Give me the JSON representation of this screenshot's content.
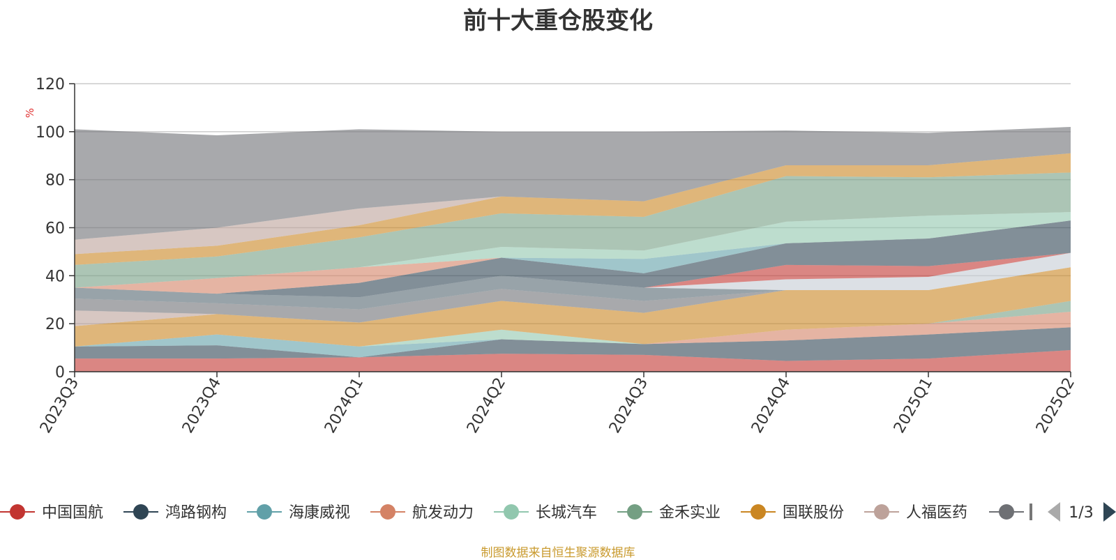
{
  "chart_data": {
    "type": "area",
    "title": "前十大重仓股变化",
    "ylabel": "%",
    "ylim": [
      0,
      120
    ],
    "yticks": [
      0,
      20,
      40,
      60,
      80,
      100,
      120
    ],
    "grid": true,
    "x": [
      "2023Q3",
      "2023Q4",
      "2024Q1",
      "2024Q2",
      "2024Q3",
      "2024Q4",
      "2025Q1",
      "2025Q2"
    ],
    "stacked": true,
    "legend_position": "bottom",
    "series": [
      {
        "name": "中国国航",
        "color": "#c23531",
        "values": [
          5.5,
          5.5,
          6.0,
          7.5,
          7.0,
          4.5,
          5.5,
          9.0
        ]
      },
      {
        "name": "鸿路钢构",
        "color": "#2f4554",
        "values": [
          5.0,
          5.5,
          0,
          6.0,
          4.5,
          8.5,
          10.0,
          9.5
        ]
      },
      {
        "name": "海康威视",
        "color": "#61a0a8",
        "values": [
          0,
          4.5,
          4.5,
          0,
          0,
          0,
          0,
          0
        ]
      },
      {
        "name": "航发动力",
        "color": "#d48265",
        "values": [
          0,
          0,
          0,
          0,
          0,
          4.5,
          4.5,
          6.5
        ]
      },
      {
        "name": "长城汽车",
        "color": "#91c7ae",
        "values": [
          0,
          0,
          0,
          4.0,
          0,
          0,
          0,
          0
        ]
      },
      {
        "name": "金禾实业",
        "color": "#749f83",
        "values": [
          0,
          0,
          0,
          0,
          0,
          0,
          0,
          4.5
        ]
      },
      {
        "name": "国联股份",
        "color": "#ca8622",
        "values": [
          8.5,
          8.5,
          10.0,
          12.0,
          13.0,
          16.5,
          14.0,
          14.0
        ]
      },
      {
        "name": "人福医药",
        "color": "#bda29a",
        "values": [
          6.5,
          0,
          0,
          0,
          0,
          0,
          0,
          0
        ]
      }
    ],
    "remaining_series_collapsed": true,
    "remaining_layers": [
      {
        "color": "#6e7074",
        "values": [
          5.0,
          4.5,
          5.5,
          5.0,
          5.0,
          0,
          0,
          0
        ]
      },
      {
        "color": "#546570",
        "values": [
          4.5,
          4.0,
          5.0,
          5.5,
          5.5,
          0,
          0,
          0
        ]
      },
      {
        "color": "#c23531",
        "values": [
          0,
          0,
          0,
          0,
          0,
          0,
          0,
          0
        ]
      },
      {
        "color": "#c4ccd3",
        "values": [
          0,
          0,
          0,
          0,
          0,
          4.5,
          5.5,
          6.0
        ]
      },
      {
        "color": "#c23531",
        "values": [
          0,
          0,
          0,
          0,
          0,
          6.0,
          4.5,
          0
        ]
      },
      {
        "color": "#2f4554",
        "values": [
          0,
          0,
          6.0,
          7.5,
          6.0,
          9.0,
          11.5,
          13.5
        ]
      },
      {
        "color": "#d48265",
        "values": [
          0,
          6.5,
          6.5,
          0,
          0,
          0,
          0,
          0
        ]
      },
      {
        "color": "#61a0a8",
        "values": [
          0,
          0,
          0,
          0,
          6.0,
          0,
          0,
          0
        ]
      },
      {
        "color": "#91c7ae",
        "values": [
          0,
          0,
          0,
          4.5,
          3.5,
          9.0,
          9.5,
          3.5
        ]
      },
      {
        "color": "#749f83",
        "values": [
          9.5,
          9.0,
          12.5,
          14.0,
          14.0,
          19.0,
          16.0,
          16.5
        ]
      },
      {
        "color": "#ca8622",
        "values": [
          4.5,
          4.5,
          5.0,
          7.0,
          6.5,
          4.5,
          5.0,
          8.0
        ]
      },
      {
        "color": "#bda29a",
        "values": [
          6.0,
          7.5,
          7.0,
          0,
          0,
          0,
          0,
          0
        ]
      },
      {
        "color": "#6e7074",
        "values": [
          46.0,
          38.5,
          33.0,
          27.0,
          29.0,
          14.5,
          13.5,
          11.0
        ]
      }
    ]
  },
  "legend": {
    "items": [
      {
        "name": "中国国航",
        "color": "#c23531"
      },
      {
        "name": "鸿路钢构",
        "color": "#2f4554"
      },
      {
        "name": "海康威视",
        "color": "#61a0a8"
      },
      {
        "name": "航发动力",
        "color": "#d48265"
      },
      {
        "name": "长城汽车",
        "color": "#91c7ae"
      },
      {
        "name": "金禾实业",
        "color": "#749f83"
      },
      {
        "name": "国联股份",
        "color": "#ca8622"
      },
      {
        "name": "人福医药",
        "color": "#bda29a"
      }
    ],
    "partial_item_color": "#6e7074",
    "partial_item_glyph": "",
    "page_indicator": "1/3"
  },
  "source_note": "制图数据来自恒生聚源数据库"
}
